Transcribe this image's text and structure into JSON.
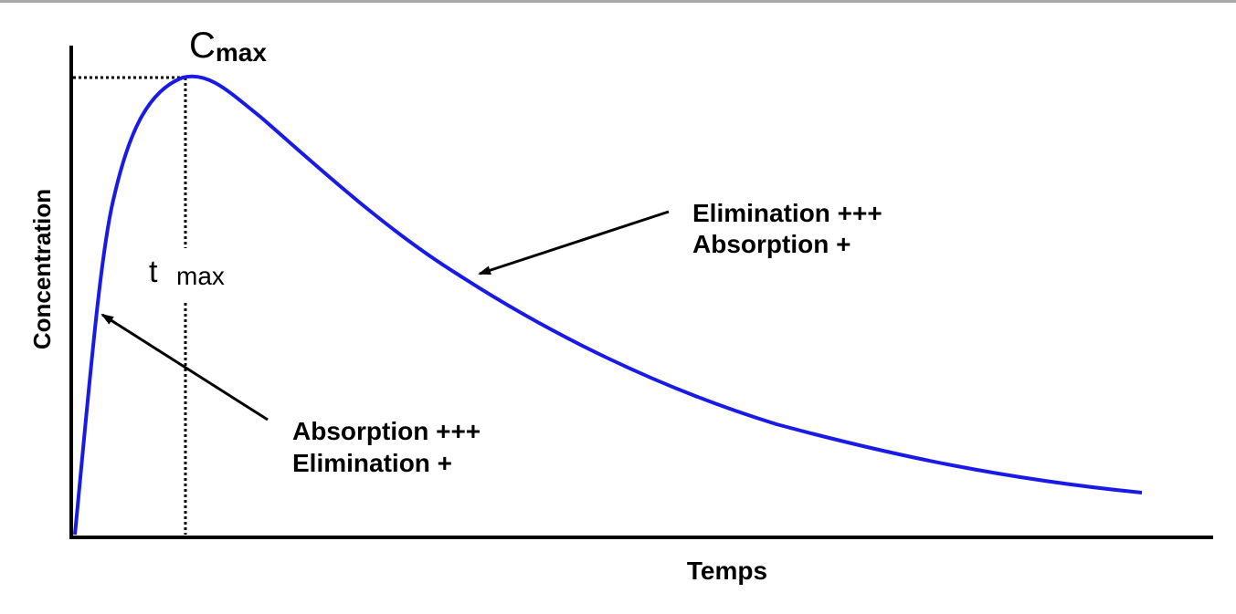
{
  "labels": {
    "cmax_main": "C",
    "cmax_sub": "max",
    "tmax_main": "t",
    "tmax_sub": "max",
    "y_axis": "Concentration",
    "x_axis": "Temps",
    "annotation_right_line1": "Elimination +++",
    "annotation_right_line2": "Absorption +",
    "annotation_left_line1": "Absorption +++",
    "annotation_left_line2": "Elimination +"
  },
  "colors": {
    "curve": "#1a1ae6",
    "axes": "#000000",
    "top_border": "#a8a8a8"
  }
}
